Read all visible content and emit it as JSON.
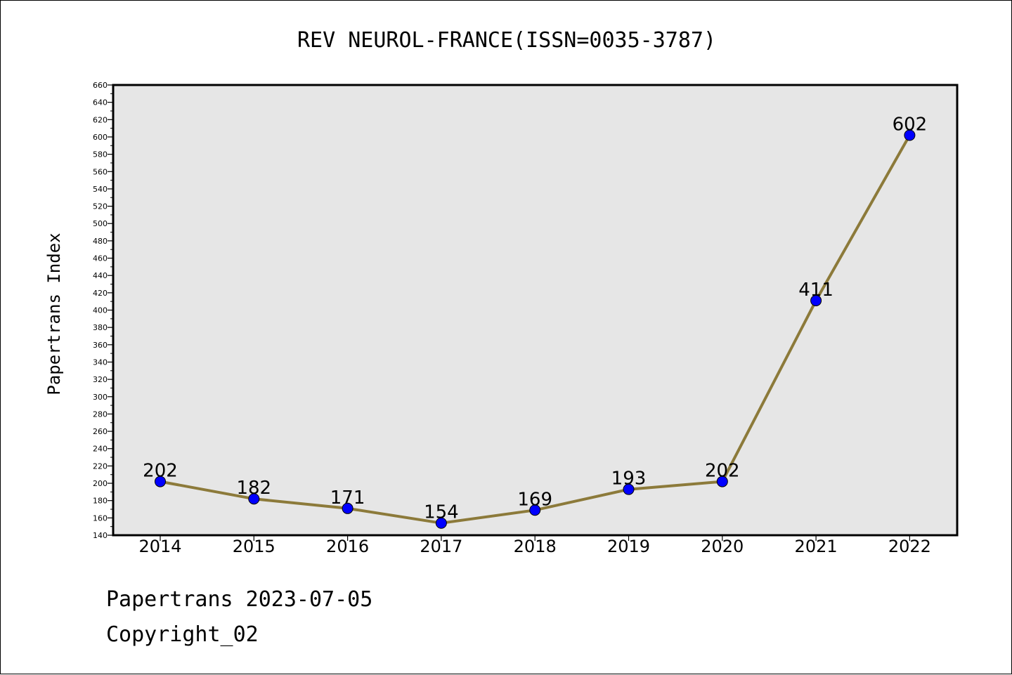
{
  "chart_data": {
    "type": "line",
    "title": "REV NEUROL-FRANCE(ISSN=0035-3787)",
    "xlabel": "",
    "ylabel": "Papertrans Index",
    "categories": [
      "2014",
      "2015",
      "2016",
      "2017",
      "2018",
      "2019",
      "2020",
      "2021",
      "2022"
    ],
    "series": [
      {
        "values": [
          202,
          182,
          171,
          154,
          169,
          193,
          202,
          411,
          602
        ]
      }
    ],
    "data_labels": [
      "202",
      "182",
      "171",
      "154",
      "169",
      "193",
      "202",
      "411",
      "602"
    ],
    "ylim": [
      140,
      660
    ],
    "yticks": [
      "140",
      "160",
      "180",
      "200",
      "220",
      "240",
      "260",
      "280",
      "300",
      "320",
      "340",
      "360",
      "380",
      "400",
      "420",
      "440",
      "460",
      "480",
      "500",
      "520",
      "540",
      "560",
      "580",
      "600",
      "620",
      "640",
      "660"
    ],
    "grid": false,
    "legend": "none",
    "colors": {
      "line": "#8c7a3a",
      "marker": "#0000ff",
      "plot_background": "#e6e6e6"
    }
  },
  "footer": {
    "line1": "Papertrans 2023-07-05",
    "line2": "Copyright_02"
  }
}
